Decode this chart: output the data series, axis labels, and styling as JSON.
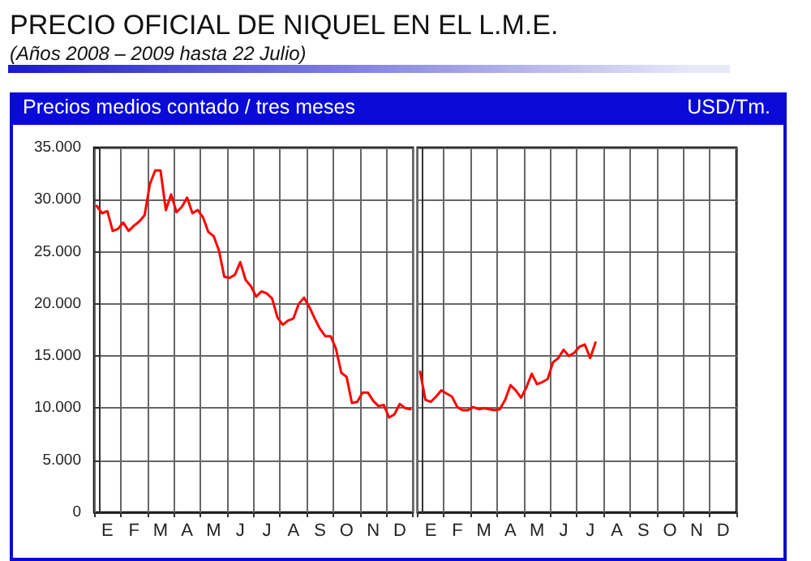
{
  "chart_data": [
    {
      "type": "line",
      "title": "PRECIO OFICIAL DE NIQUEL EN EL L.M.E.",
      "subtitle": "(Años 2008 – 2009 hasta 22 Julio)",
      "annotations": [
        "Precios medios contado / tres meses"
      ],
      "ylabel": "USD/Tm.",
      "grid": true,
      "marker": "none",
      "line_style": "solid",
      "categories": [
        null,
        null,
        "E",
        null,
        null,
        null,
        null,
        "F",
        null,
        null,
        null,
        null,
        "M",
        null,
        null,
        null,
        null,
        "A",
        null,
        null,
        null,
        null,
        "M",
        null,
        null,
        null,
        null,
        "J",
        null,
        null,
        null,
        null,
        "J",
        null,
        null,
        null,
        null,
        "A",
        null,
        null,
        null,
        null,
        "S",
        null,
        null,
        null,
        null,
        "O",
        null,
        null,
        null,
        null,
        "N",
        null,
        null,
        null,
        null,
        "D",
        null,
        null
      ],
      "ylim": [
        0,
        35000
      ],
      "yticks": [
        {
          "value": 0,
          "label": "0"
        },
        {
          "value": 5000,
          "label": "5.000"
        },
        {
          "value": 10000,
          "label": "10.000"
        },
        {
          "value": 15000,
          "label": "15.000"
        },
        {
          "value": 20000,
          "label": "20.000"
        },
        {
          "value": 25000,
          "label": "25.000"
        },
        {
          "value": 30000,
          "label": "30.000"
        },
        {
          "value": 35000,
          "label": "35.000"
        }
      ],
      "series": [
        {
          "color": "#ff0000",
          "values": [
            29400,
            28700,
            28900,
            27000,
            27200,
            27800,
            27000,
            27500,
            27900,
            28500,
            31500,
            32800,
            32800,
            29000,
            30500,
            28800,
            29300,
            30200,
            28700,
            29000,
            28300,
            26900,
            26500,
            25100,
            22600,
            22500,
            22800,
            24000,
            22300,
            21700,
            20700,
            21200,
            21000,
            20500,
            18700,
            18000,
            18400,
            18600,
            20000,
            20600,
            19700,
            18600,
            17600,
            16900,
            16900,
            15700,
            13400,
            13000,
            10500,
            10600,
            11500,
            11500,
            10700,
            10200,
            10300,
            9100,
            9400,
            10400,
            10000,
            9900
          ]
        }
      ]
    },
    {
      "type": "line",
      "grid": true,
      "marker": "none",
      "line_style": "solid",
      "tick_labels": "x",
      "categories": [
        null,
        null,
        "E",
        null,
        null,
        null,
        null,
        "F",
        null,
        null,
        null,
        null,
        "M",
        null,
        null,
        null,
        null,
        "A",
        null,
        null,
        null,
        null,
        "M",
        null,
        null,
        null,
        null,
        "J",
        null,
        null,
        null,
        null,
        "J",
        null,
        null,
        null,
        null,
        "A",
        null,
        null,
        null,
        null,
        "S",
        null,
        null,
        null,
        null,
        "O",
        null,
        null,
        null,
        null,
        "N",
        null,
        null,
        null,
        null,
        "D",
        null,
        null
      ],
      "ylim": [
        0,
        35000
      ],
      "yticks": [
        0,
        5000,
        10000,
        15000,
        20000,
        25000,
        30000,
        35000
      ],
      "series": [
        {
          "color": "#ff0000",
          "values": [
            13500,
            10800,
            10600,
            11100,
            11700,
            11400,
            11100,
            10100,
            9800,
            9800,
            10100,
            9900,
            10000,
            9900,
            9800,
            9900,
            10800,
            12200,
            11700,
            11000,
            12000,
            13300,
            12300,
            12500,
            12800,
            14400,
            14800,
            15600,
            15000,
            15300,
            15900,
            16100,
            14800,
            16300,
            null,
            null,
            null,
            null,
            null,
            null,
            null,
            null,
            null,
            null,
            null,
            null,
            null,
            null,
            null,
            null,
            null,
            null,
            null,
            null,
            null,
            null,
            null,
            null,
            null,
            null
          ]
        }
      ]
    }
  ]
}
